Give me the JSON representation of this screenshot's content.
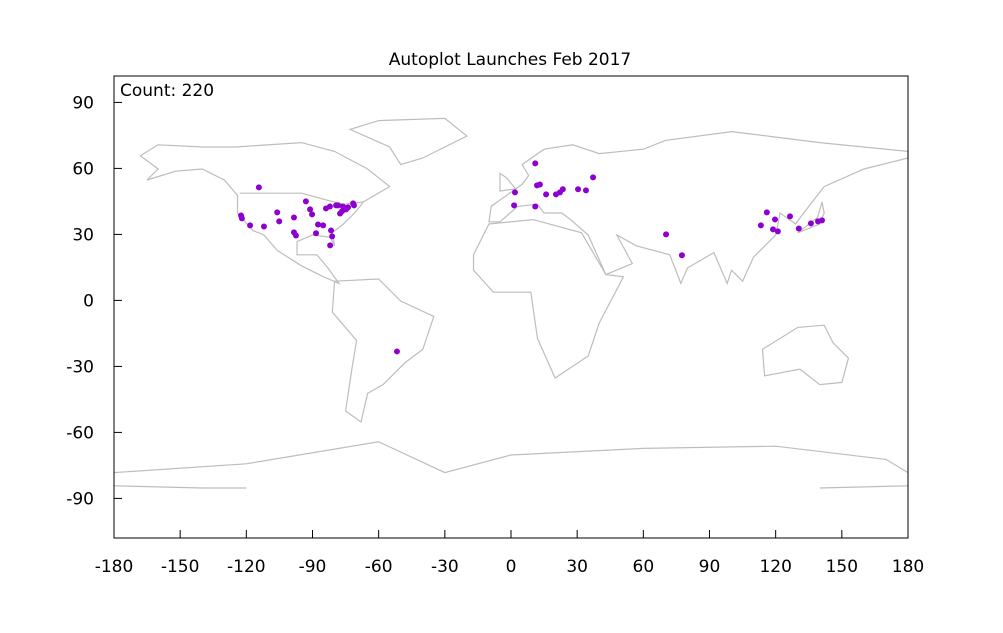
{
  "chart_data": {
    "type": "scatter",
    "title": "Autoplot Launches Feb 2017",
    "annotation": "Count: 220",
    "xlim": [
      -180,
      180
    ],
    "ylim": [
      -108,
      102
    ],
    "xticks": [
      -180,
      -150,
      -120,
      -90,
      -60,
      -30,
      0,
      30,
      60,
      90,
      120,
      150,
      180
    ],
    "yticks": [
      -90,
      -60,
      -30,
      0,
      30,
      60,
      90
    ],
    "series": [
      {
        "color": "#8e00d0",
        "x": [
          -114.3,
          -122.4,
          -122,
          -118.3,
          -112,
          -106,
          -105.1,
          -98.4,
          -97.5,
          -98.4,
          -93,
          -91.1,
          -90.2,
          -87.5,
          -88.4,
          -85.2,
          -83.9,
          -82.1,
          -79.3,
          -81.6,
          -81.1,
          -82,
          -78.4,
          -77.5,
          -76.6,
          -74.8,
          -73.9,
          -71.2,
          -71.6,
          -76.2,
          1.8,
          1.4,
          11,
          11.8,
          13.1,
          15.9,
          11,
          22.2,
          23.5,
          30.4,
          34,
          37.2,
          20.4,
          70.3,
          77.5,
          113.3,
          116,
          119.7,
          118.8,
          121,
          126.5,
          130.5,
          136,
          139.2,
          141,
          -51.7
        ],
        "values": [
          51.4,
          38.6,
          37.3,
          34.1,
          33.6,
          40,
          35.9,
          37.7,
          29.5,
          30.9,
          45,
          41.4,
          39.1,
          34.5,
          30.5,
          34.1,
          41.8,
          42.7,
          43.2,
          31.8,
          29.1,
          25,
          43.2,
          39.5,
          40.5,
          41.4,
          42.3,
          43.2,
          44.1,
          42.7,
          49.1,
          43.2,
          62.3,
          52.3,
          52.7,
          48.2,
          42.7,
          49.1,
          50.5,
          50.5,
          50,
          55.9,
          48.2,
          30,
          20.5,
          34.1,
          40,
          36.8,
          32.3,
          31.4,
          38.2,
          32.7,
          35,
          35.9,
          36.4,
          -23.2
        ]
      }
    ]
  }
}
